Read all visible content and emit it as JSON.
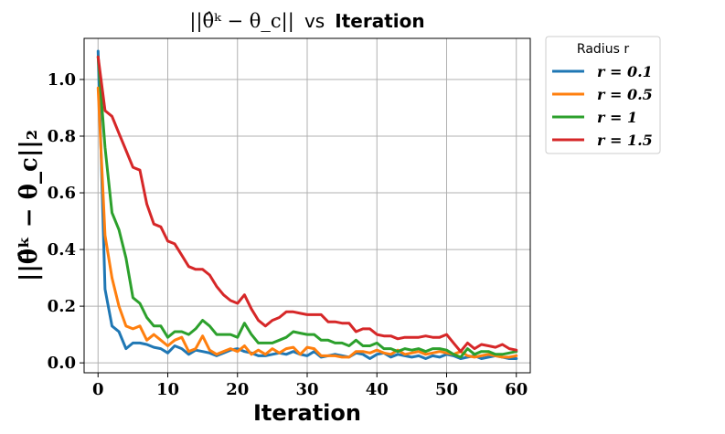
{
  "chart_data": {
    "type": "line",
    "title": {
      "math": "||θ̂ᵏ − θ_c||",
      "connector": "vs",
      "bold": "Iteration"
    },
    "xlabel": "Iteration",
    "ylabel": "||θ̂ᵏ − θ_c||₂",
    "xlim": [
      -2,
      62
    ],
    "ylim": [
      -0.035,
      1.145
    ],
    "xticks": [
      0,
      10,
      20,
      30,
      40,
      50,
      60
    ],
    "xtick_labels": [
      "0",
      "10",
      "20",
      "30",
      "40",
      "50",
      "60"
    ],
    "yticks": [
      0.0,
      0.2,
      0.4,
      0.6,
      0.8,
      1.0
    ],
    "ytick_labels": [
      "0.0",
      "0.2",
      "0.4",
      "0.6",
      "0.8",
      "1.0"
    ],
    "grid": true,
    "legend": {
      "title": "Radius r",
      "position": "outside-top-right"
    },
    "series": [
      {
        "name": "r = 0.1",
        "color": "#1f77b4",
        "x": [
          0,
          1,
          2,
          3,
          4,
          5,
          6,
          7,
          8,
          9,
          10,
          11,
          12,
          13,
          14,
          15,
          16,
          17,
          18,
          19,
          20,
          21,
          22,
          23,
          24,
          25,
          26,
          27,
          28,
          29,
          30,
          31,
          32,
          33,
          34,
          35,
          36,
          37,
          38,
          39,
          40,
          41,
          42,
          43,
          44,
          45,
          46,
          47,
          48,
          49,
          50,
          51,
          52,
          53,
          54,
          55,
          56,
          57,
          58,
          59,
          60
        ],
        "values": [
          1.1,
          0.26,
          0.13,
          0.11,
          0.05,
          0.07,
          0.07,
          0.065,
          0.055,
          0.05,
          0.035,
          0.06,
          0.05,
          0.03,
          0.045,
          0.04,
          0.035,
          0.025,
          0.035,
          0.045,
          0.05,
          0.04,
          0.035,
          0.025,
          0.025,
          0.03,
          0.035,
          0.03,
          0.04,
          0.03,
          0.025,
          0.04,
          0.02,
          0.025,
          0.03,
          0.025,
          0.02,
          0.035,
          0.03,
          0.015,
          0.03,
          0.035,
          0.02,
          0.03,
          0.025,
          0.02,
          0.025,
          0.015,
          0.025,
          0.02,
          0.03,
          0.025,
          0.015,
          0.02,
          0.025,
          0.015,
          0.02,
          0.025,
          0.02,
          0.015,
          0.015
        ]
      },
      {
        "name": "r = 0.5",
        "color": "#ff7f0e",
        "x": [
          0,
          1,
          2,
          3,
          4,
          5,
          6,
          7,
          8,
          9,
          10,
          11,
          12,
          13,
          14,
          15,
          16,
          17,
          18,
          19,
          20,
          21,
          22,
          23,
          24,
          25,
          26,
          27,
          28,
          29,
          30,
          31,
          32,
          33,
          34,
          35,
          36,
          37,
          38,
          39,
          40,
          41,
          42,
          43,
          44,
          45,
          46,
          47,
          48,
          49,
          50,
          51,
          52,
          53,
          54,
          55,
          56,
          57,
          58,
          59,
          60
        ],
        "values": [
          0.97,
          0.45,
          0.3,
          0.2,
          0.13,
          0.12,
          0.13,
          0.08,
          0.1,
          0.08,
          0.06,
          0.08,
          0.09,
          0.04,
          0.05,
          0.095,
          0.045,
          0.03,
          0.04,
          0.05,
          0.04,
          0.06,
          0.03,
          0.045,
          0.03,
          0.05,
          0.035,
          0.05,
          0.055,
          0.03,
          0.055,
          0.05,
          0.025,
          0.025,
          0.025,
          0.02,
          0.02,
          0.04,
          0.04,
          0.035,
          0.045,
          0.035,
          0.03,
          0.045,
          0.03,
          0.035,
          0.04,
          0.03,
          0.035,
          0.04,
          0.035,
          0.03,
          0.04,
          0.025,
          0.02,
          0.025,
          0.03,
          0.025,
          0.02,
          0.02,
          0.025
        ]
      },
      {
        "name": "r = 1",
        "color": "#2ca02c",
        "x": [
          0,
          1,
          2,
          3,
          4,
          5,
          6,
          7,
          8,
          9,
          10,
          11,
          12,
          13,
          14,
          15,
          16,
          17,
          18,
          19,
          20,
          21,
          22,
          23,
          24,
          25,
          26,
          27,
          28,
          29,
          30,
          31,
          32,
          33,
          34,
          35,
          36,
          37,
          38,
          39,
          40,
          41,
          42,
          43,
          44,
          45,
          46,
          47,
          48,
          49,
          50,
          51,
          52,
          53,
          54,
          55,
          56,
          57,
          58,
          59,
          60
        ],
        "values": [
          1.08,
          0.76,
          0.53,
          0.47,
          0.37,
          0.23,
          0.21,
          0.16,
          0.13,
          0.13,
          0.09,
          0.11,
          0.11,
          0.1,
          0.12,
          0.15,
          0.13,
          0.1,
          0.1,
          0.1,
          0.09,
          0.14,
          0.1,
          0.07,
          0.07,
          0.07,
          0.08,
          0.09,
          0.11,
          0.105,
          0.1,
          0.1,
          0.08,
          0.08,
          0.07,
          0.07,
          0.06,
          0.08,
          0.06,
          0.06,
          0.07,
          0.05,
          0.05,
          0.04,
          0.05,
          0.045,
          0.05,
          0.04,
          0.05,
          0.05,
          0.045,
          0.03,
          0.02,
          0.05,
          0.03,
          0.04,
          0.04,
          0.03,
          0.03,
          0.035,
          0.04
        ]
      },
      {
        "name": "r = 1.5",
        "color": "#d62728",
        "x": [
          0,
          1,
          2,
          3,
          4,
          5,
          6,
          7,
          8,
          9,
          10,
          11,
          12,
          13,
          14,
          15,
          16,
          17,
          18,
          19,
          20,
          21,
          22,
          23,
          24,
          25,
          26,
          27,
          28,
          29,
          30,
          31,
          32,
          33,
          34,
          35,
          36,
          37,
          38,
          39,
          40,
          41,
          42,
          43,
          44,
          45,
          46,
          47,
          48,
          49,
          50,
          51,
          52,
          53,
          54,
          55,
          56,
          57,
          58,
          59,
          60
        ],
        "values": [
          1.08,
          0.89,
          0.87,
          0.81,
          0.75,
          0.69,
          0.68,
          0.56,
          0.49,
          0.48,
          0.43,
          0.42,
          0.38,
          0.34,
          0.33,
          0.33,
          0.31,
          0.27,
          0.24,
          0.22,
          0.21,
          0.24,
          0.19,
          0.15,
          0.13,
          0.15,
          0.16,
          0.18,
          0.18,
          0.175,
          0.17,
          0.17,
          0.17,
          0.145,
          0.145,
          0.14,
          0.14,
          0.11,
          0.12,
          0.12,
          0.1,
          0.095,
          0.095,
          0.085,
          0.09,
          0.09,
          0.09,
          0.095,
          0.09,
          0.09,
          0.1,
          0.07,
          0.04,
          0.07,
          0.05,
          0.065,
          0.06,
          0.055,
          0.065,
          0.05,
          0.045
        ]
      }
    ]
  }
}
